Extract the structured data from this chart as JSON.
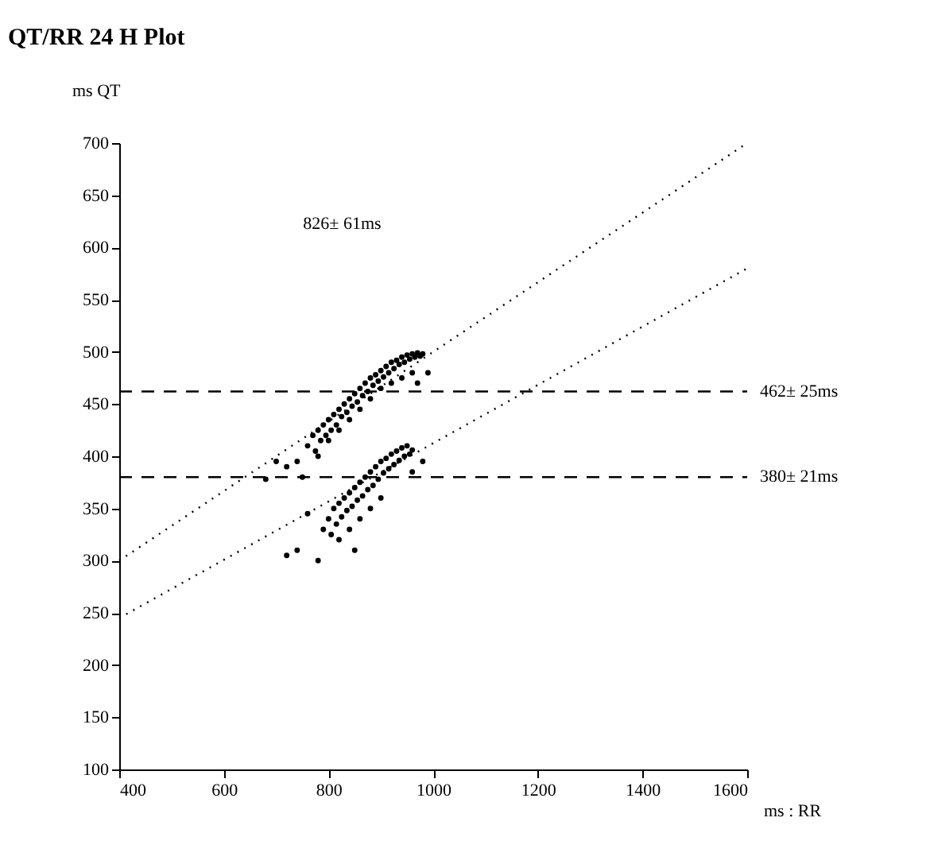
{
  "chart_data": {
    "type": "scatter",
    "title": "QT/RR 24 H Plot",
    "xlabel": "ms : RR",
    "ylabel": "ms QT",
    "xlim": [
      400,
      1600
    ],
    "xticks": [
      400,
      600,
      800,
      1000,
      1200,
      1400,
      1600
    ],
    "ylim": [
      100,
      700
    ],
    "yticks": [
      100,
      150,
      200,
      250,
      300,
      350,
      400,
      450,
      500,
      550,
      600,
      650,
      700
    ],
    "grid": false,
    "series": [
      {
        "marker": "circle",
        "color": "#000000",
        "x": [
          760,
          770,
          775,
          780,
          785,
          790,
          795,
          800,
          805,
          810,
          815,
          820,
          825,
          830,
          835,
          840,
          845,
          850,
          855,
          860,
          865,
          870,
          875,
          880,
          885,
          890,
          895,
          900,
          905,
          910,
          915,
          920,
          925,
          930,
          935,
          940,
          945,
          950,
          955,
          960,
          965,
          970,
          975,
          980,
          960,
          940,
          920,
          900,
          880,
          860,
          840,
          820,
          800,
          780,
          740,
          720,
          700,
          680,
          750,
          970,
          990
        ],
        "values": [
          410,
          420,
          405,
          425,
          415,
          430,
          420,
          435,
          425,
          440,
          430,
          445,
          438,
          450,
          442,
          455,
          448,
          460,
          452,
          465,
          458,
          470,
          462,
          475,
          468,
          478,
          472,
          482,
          476,
          486,
          480,
          490,
          484,
          492,
          488,
          495,
          490,
          497,
          493,
          498,
          495,
          499,
          496,
          498,
          480,
          475,
          470,
          465,
          455,
          445,
          435,
          425,
          415,
          400,
          395,
          390,
          395,
          378,
          380,
          470,
          480
        ]
      },
      {
        "marker": "circle",
        "color": "#000000",
        "x": [
          790,
          800,
          805,
          810,
          815,
          820,
          825,
          830,
          835,
          840,
          845,
          850,
          855,
          860,
          865,
          870,
          875,
          880,
          885,
          890,
          895,
          900,
          905,
          910,
          915,
          920,
          925,
          930,
          935,
          940,
          945,
          950,
          955,
          960,
          820,
          840,
          860,
          880,
          900,
          760,
          740,
          720,
          780,
          960,
          980,
          850
        ],
        "values": [
          330,
          340,
          325,
          350,
          335,
          355,
          342,
          360,
          348,
          365,
          352,
          370,
          358,
          375,
          362,
          380,
          368,
          385,
          372,
          390,
          378,
          395,
          384,
          398,
          388,
          402,
          392,
          405,
          396,
          408,
          400,
          410,
          402,
          406,
          320,
          330,
          340,
          350,
          360,
          345,
          310,
          305,
          300,
          385,
          395,
          310
        ]
      },
      {
        "type": "line",
        "color": "#000000",
        "line_style": "dotted",
        "x": [
          400,
          1600
        ],
        "values": [
          300,
          700
        ]
      },
      {
        "type": "line",
        "color": "#000000",
        "line_style": "dotted",
        "x": [
          400,
          1600
        ],
        "values": [
          245,
          580
        ]
      }
    ],
    "ref_lines": [
      {
        "axis": "y",
        "value": 462,
        "label": "462± 25ms",
        "line_style": "dashed"
      },
      {
        "axis": "y",
        "value": 380,
        "label": "380± 21ms",
        "line_style": "dashed"
      }
    ],
    "annotations": [
      "826± 61ms"
    ]
  }
}
